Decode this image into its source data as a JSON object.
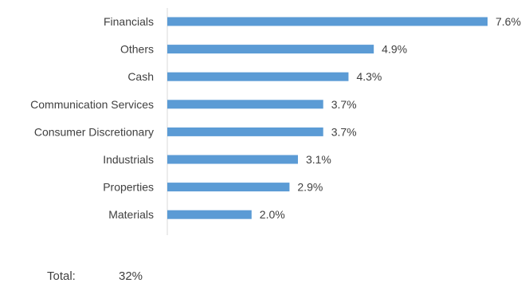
{
  "chart_data": {
    "type": "bar",
    "orientation": "horizontal",
    "categories": [
      "Financials",
      "Others",
      "Cash",
      "Communication Services",
      "Consumer Discretionary",
      "Industrials",
      "Properties",
      "Materials"
    ],
    "values": [
      7.6,
      4.9,
      4.3,
      3.7,
      3.7,
      3.1,
      2.9,
      2.0
    ],
    "value_labels": [
      "7.6%",
      "4.9%",
      "4.3%",
      "3.7%",
      "3.7%",
      "3.1%",
      "2.9%",
      "2.0%"
    ],
    "xlim": [
      0,
      7.6
    ],
    "grid": false,
    "bar_color": "#5B9BD5",
    "axis_color": "#D9D9D9"
  },
  "total": {
    "label": "Total:",
    "value": "32%"
  }
}
